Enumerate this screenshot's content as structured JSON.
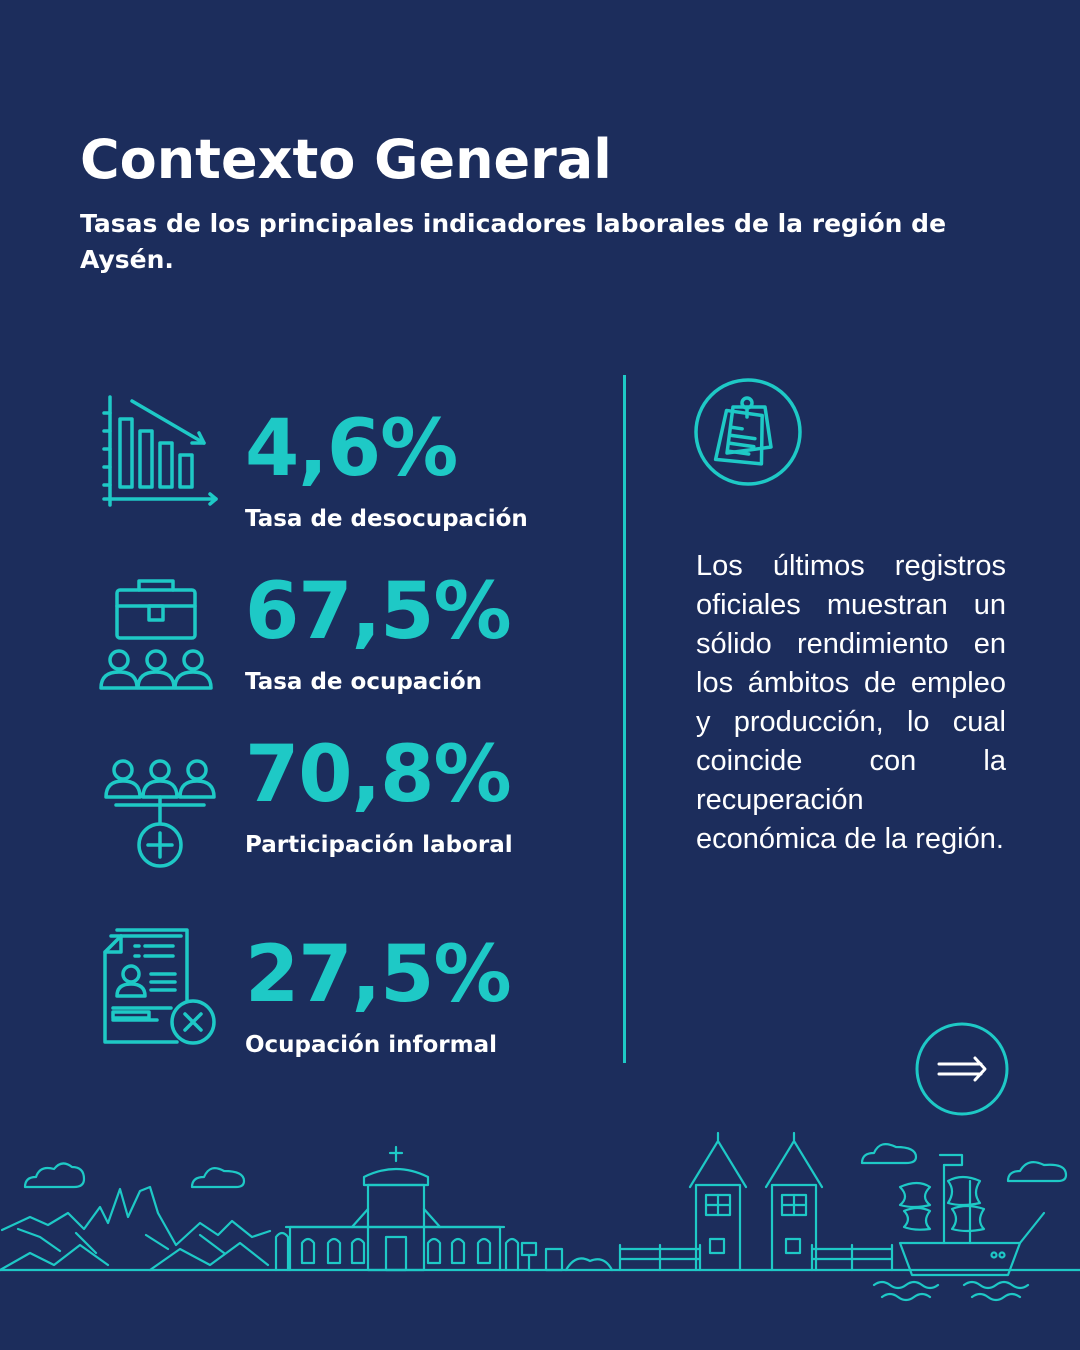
{
  "header": {
    "title": "Contexto General",
    "subtitle": "Tasas de los principales indicadores laborales de la región de Aysén."
  },
  "stats": [
    {
      "value": "4,6%",
      "label": "Tasa de desocupación",
      "icon": "declining-bar-chart-icon"
    },
    {
      "value": "67,5%",
      "label": "Tasa de ocupación",
      "icon": "briefcase-people-icon"
    },
    {
      "value": "70,8%",
      "label": "Participación laboral",
      "icon": "people-plus-icon"
    },
    {
      "value": "27,5%",
      "label": "Ocupación informal",
      "icon": "document-cancel-icon"
    }
  ],
  "side_note": {
    "icon": "pinned-notes-icon",
    "text": "Los últimos registros oficiales muestran un sólido rendimiento en los ámbitos de empleo y producción, lo cual coincide con la recuperación económica de la región."
  },
  "navigation": {
    "next_icon": "arrow-right-icon"
  },
  "colors": {
    "background": "#1c2d5c",
    "accent": "#1ec9c6",
    "text": "#ffffff"
  }
}
